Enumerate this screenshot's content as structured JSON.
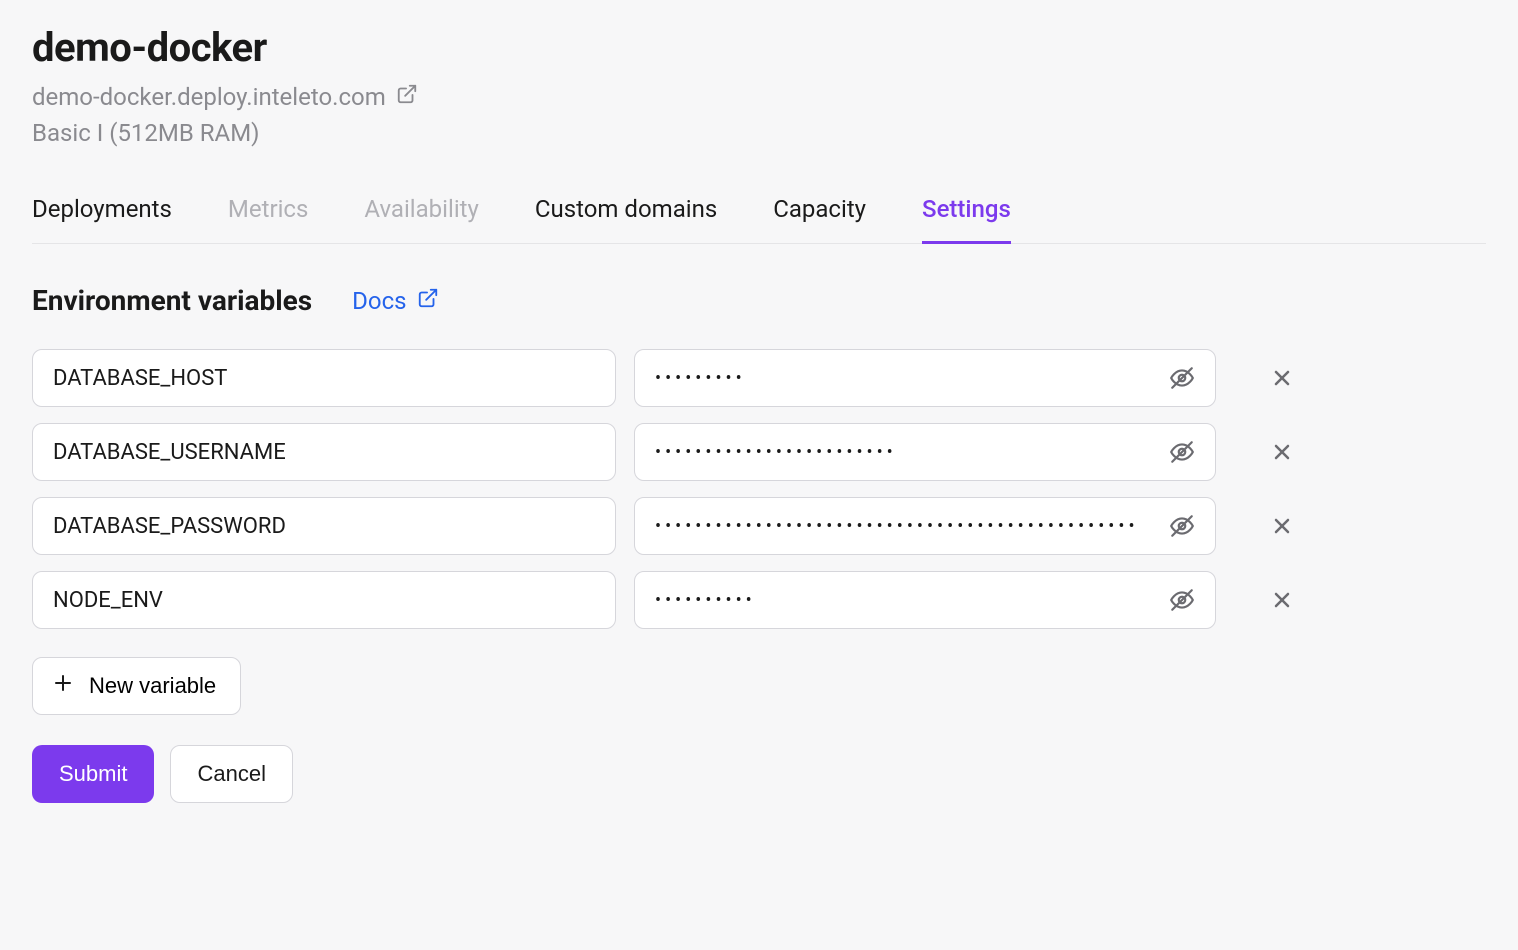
{
  "header": {
    "title": "demo-docker",
    "domain": "demo-docker.deploy.inteleto.com",
    "plan": "Basic I (512MB RAM)"
  },
  "tabs": [
    {
      "label": "Deployments",
      "state": "normal"
    },
    {
      "label": "Metrics",
      "state": "disabled"
    },
    {
      "label": "Availability",
      "state": "disabled"
    },
    {
      "label": "Custom domains",
      "state": "normal"
    },
    {
      "label": "Capacity",
      "state": "normal"
    },
    {
      "label": "Settings",
      "state": "active"
    }
  ],
  "section": {
    "title": "Environment variables",
    "docs_label": "Docs"
  },
  "env_vars": [
    {
      "key": "DATABASE_HOST",
      "masked_value": "•••••••••"
    },
    {
      "key": "DATABASE_USERNAME",
      "masked_value": "••••••••••••••••••••••••"
    },
    {
      "key": "DATABASE_PASSWORD",
      "masked_value": "••••••••••••••••••••••••••••••••••••••••••••••••"
    },
    {
      "key": "NODE_ENV",
      "masked_value": "••••••••••"
    }
  ],
  "buttons": {
    "new_variable": "New variable",
    "submit": "Submit",
    "cancel": "Cancel"
  },
  "colors": {
    "accent": "#7c3aed",
    "link": "#2563eb",
    "border": "#d6d6db",
    "muted": "#8a8a8f",
    "disabled": "#b0b0b5",
    "background": "#f7f7f8",
    "surface": "#ffffff",
    "text": "#1a1a1a"
  }
}
